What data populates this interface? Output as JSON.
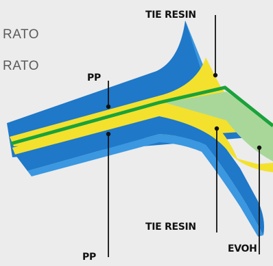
{
  "side_text": [
    "RATO",
    "RATO"
  ],
  "labels": {
    "tie_resin_top": "TIE RESIN",
    "pp_top": "PP",
    "tie_resin_bottom": "TIE RESIN",
    "pp_bottom": "PP",
    "evoh": "EVOH"
  },
  "colors": {
    "background": "#ececec",
    "pp": "#1f78c8",
    "pp_edge": "#3a97e0",
    "tie_resin": "#f3e12e",
    "evoh_line": "#1aa23a",
    "evoh_fill": "#a9d79a",
    "leader": "#111111"
  }
}
